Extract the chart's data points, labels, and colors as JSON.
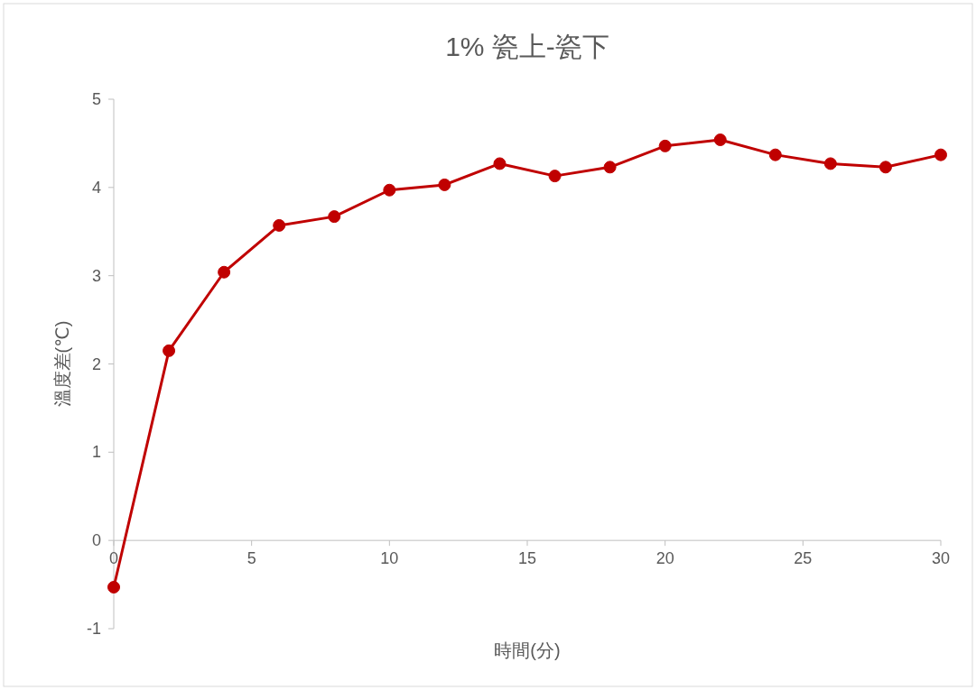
{
  "chart_data": {
    "type": "line",
    "title": "1% 瓷上-瓷下",
    "xlabel": "時間(分)",
    "ylabel": "溫度差(℃)",
    "x": [
      0,
      2,
      4,
      6,
      8,
      10,
      12,
      14,
      16,
      18,
      20,
      22,
      24,
      26,
      28,
      30
    ],
    "values": [
      -0.53,
      2.15,
      3.04,
      3.57,
      3.67,
      3.97,
      4.03,
      4.27,
      4.13,
      4.23,
      4.47,
      4.54,
      4.37,
      4.27,
      4.23,
      4.37
    ],
    "color": "#c00000",
    "marker": "circle",
    "xlim": [
      0,
      30
    ],
    "xticks": [
      0,
      5,
      10,
      15,
      20,
      25,
      30
    ],
    "ylim": [
      -1,
      5
    ],
    "yticks": [
      -1,
      0,
      1,
      2,
      3,
      4,
      5
    ]
  }
}
